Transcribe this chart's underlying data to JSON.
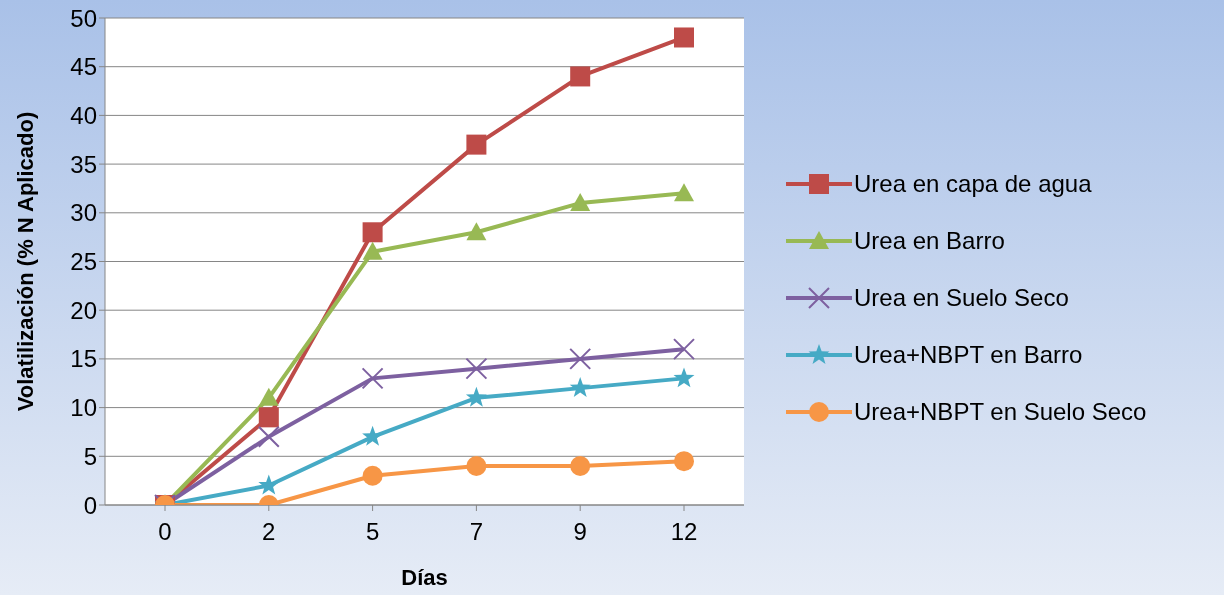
{
  "chart_data": {
    "type": "line",
    "xlabel": "Días",
    "ylabel": "Volatilización (% N Aplicado)",
    "categories": [
      "0",
      "2",
      "5",
      "7",
      "9",
      "12"
    ],
    "ylim": [
      0,
      50
    ],
    "yticks": [
      0,
      5,
      10,
      15,
      20,
      25,
      30,
      35,
      40,
      45,
      50
    ],
    "grid": "y",
    "legend": "right",
    "series": [
      {
        "name": "Urea en capa de agua",
        "color": "#be4b48",
        "marker": "square",
        "values": [
          0,
          9,
          28,
          37,
          44,
          48
        ]
      },
      {
        "name": "Urea en Barro",
        "color": "#98b954",
        "marker": "triangle",
        "values": [
          0,
          11,
          26,
          28,
          31,
          32
        ]
      },
      {
        "name": "Urea en Suelo Seco",
        "color": "#7d60a0",
        "marker": "cross",
        "values": [
          0,
          7,
          13,
          14,
          15,
          16
        ]
      },
      {
        "name": "Urea+NBPT en Barro",
        "color": "#46aac5",
        "marker": "star",
        "values": [
          0,
          2,
          7,
          11,
          12,
          13
        ]
      },
      {
        "name": "Urea+NBPT en Suelo Seco",
        "color": "#f79646",
        "marker": "circle",
        "values": [
          0,
          0,
          3,
          4,
          4,
          4.5
        ]
      }
    ]
  }
}
